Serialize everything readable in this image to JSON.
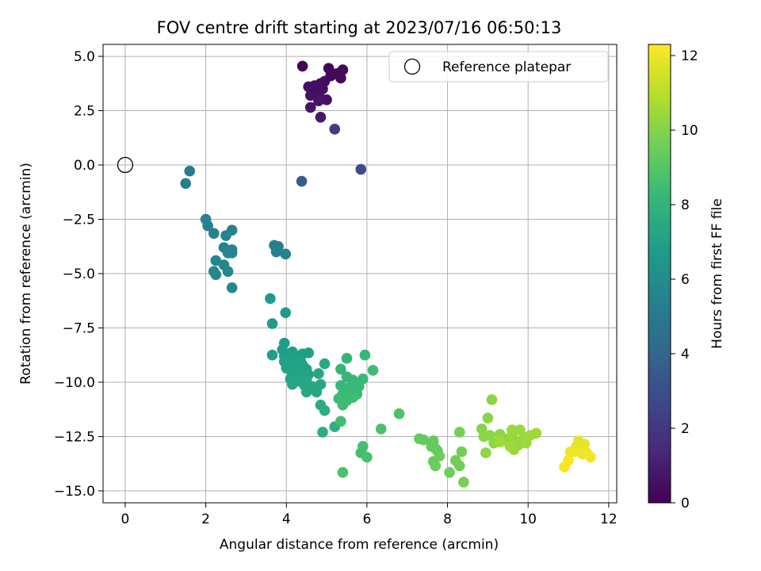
{
  "chart_data": {
    "type": "scatter",
    "title": "FOV centre drift starting at 2023/07/16 06:50:13",
    "xlabel": "Angular distance from reference (arcmin)",
    "ylabel": "Rotation from reference (arcmin)",
    "xlim": [
      -0.55,
      12.2
    ],
    "ylim": [
      -15.55,
      5.55
    ],
    "xticks": [
      0,
      2,
      4,
      6,
      8,
      10,
      12
    ],
    "xtick_labels": [
      "0",
      "2",
      "4",
      "6",
      "8",
      "10",
      "12"
    ],
    "yticks": [
      5.0,
      2.5,
      0.0,
      -2.5,
      -5.0,
      -7.5,
      -10.0,
      -12.5,
      -15.0
    ],
    "ytick_labels": [
      "5.0",
      "2.5",
      "0.0",
      "−2.5",
      "−5.0",
      "−7.5",
      "−10.0",
      "−12.5",
      "−15.0"
    ],
    "grid": true,
    "legend": {
      "position": "top-right",
      "entries": [
        {
          "label": "Reference platepar",
          "marker": "open-circle",
          "x": 0,
          "y": 0
        }
      ]
    },
    "colorbar": {
      "label": "Hours from first FF file",
      "colormap": "viridis",
      "range": [
        0,
        12.3
      ],
      "ticks": [
        0,
        2,
        4,
        6,
        8,
        10,
        12
      ],
      "tick_labels": [
        "0",
        "2",
        "4",
        "6",
        "8",
        "10",
        "12"
      ]
    },
    "colormap_stops": [
      "#440154",
      "#482878",
      "#3e4989",
      "#31688e",
      "#26828e",
      "#1f9e89",
      "#35b779",
      "#6ece58",
      "#b5de2b",
      "#fde725"
    ],
    "reference_point": {
      "x": 0,
      "y": 0
    },
    "series": [
      {
        "points": [
          [
            4.4,
            4.55,
            0.1
          ],
          [
            5.05,
            4.45,
            0.15
          ],
          [
            5.4,
            4.38,
            0.2
          ],
          [
            5.25,
            4.2,
            0.2
          ],
          [
            5.1,
            4.1,
            0.25
          ],
          [
            5.35,
            4.0,
            0.25
          ],
          [
            4.95,
            3.85,
            0.3
          ],
          [
            4.85,
            3.75,
            0.35
          ],
          [
            4.7,
            3.65,
            0.4
          ],
          [
            4.55,
            3.6,
            0.4
          ],
          [
            4.9,
            3.5,
            0.45
          ],
          [
            4.65,
            3.4,
            0.45
          ],
          [
            4.75,
            3.3,
            0.5
          ],
          [
            4.6,
            3.2,
            0.55
          ],
          [
            4.85,
            3.05,
            0.6
          ],
          [
            5.0,
            3.0,
            0.6
          ],
          [
            4.8,
            2.95,
            0.65
          ],
          [
            4.6,
            2.65,
            0.7
          ],
          [
            4.85,
            2.2,
            0.8
          ],
          [
            5.2,
            1.65,
            2.1
          ],
          [
            5.85,
            -0.2,
            2.8
          ],
          [
            4.38,
            -0.75,
            3.6
          ],
          [
            1.6,
            -0.28,
            5.1
          ],
          [
            1.5,
            -0.85,
            5.2
          ],
          [
            2.0,
            -2.5,
            5.4
          ],
          [
            2.05,
            -2.8,
            5.4
          ],
          [
            2.2,
            -3.15,
            5.45
          ],
          [
            2.65,
            -3.0,
            5.5
          ],
          [
            2.5,
            -3.25,
            5.5
          ],
          [
            2.45,
            -3.8,
            5.55
          ],
          [
            2.65,
            -3.9,
            5.55
          ],
          [
            2.55,
            -4.05,
            5.6
          ],
          [
            2.65,
            -4.05,
            5.6
          ],
          [
            2.25,
            -4.4,
            5.65
          ],
          [
            2.45,
            -4.6,
            5.65
          ],
          [
            2.2,
            -4.9,
            5.7
          ],
          [
            2.25,
            -5.05,
            5.7
          ],
          [
            2.55,
            -4.9,
            5.75
          ],
          [
            2.65,
            -5.65,
            5.8
          ],
          [
            3.7,
            -3.7,
            5.3
          ],
          [
            3.8,
            -3.75,
            5.3
          ],
          [
            3.75,
            -4.0,
            5.35
          ],
          [
            3.98,
            -4.1,
            5.4
          ],
          [
            3.6,
            -6.15,
            6.6
          ],
          [
            3.65,
            -7.3,
            6.65
          ],
          [
            3.98,
            -6.8,
            6.7
          ],
          [
            3.95,
            -8.2,
            6.8
          ],
          [
            3.9,
            -8.5,
            6.85
          ],
          [
            4.15,
            -8.6,
            6.85
          ],
          [
            3.65,
            -8.75,
            6.9
          ],
          [
            3.95,
            -8.8,
            6.9
          ],
          [
            4.4,
            -8.7,
            6.9
          ],
          [
            4.55,
            -8.65,
            6.9
          ],
          [
            4.2,
            -8.9,
            6.95
          ],
          [
            4.35,
            -9.0,
            7.0
          ],
          [
            3.95,
            -9.05,
            7.0
          ],
          [
            4.1,
            -9.15,
            7.0
          ],
          [
            4.2,
            -9.25,
            7.0
          ],
          [
            4.4,
            -9.2,
            7.05
          ],
          [
            4.0,
            -9.35,
            7.05
          ],
          [
            4.25,
            -9.45,
            7.1
          ],
          [
            4.5,
            -9.4,
            7.1
          ],
          [
            4.15,
            -9.6,
            7.1
          ],
          [
            4.35,
            -9.7,
            7.15
          ],
          [
            4.55,
            -9.65,
            7.15
          ],
          [
            4.1,
            -9.85,
            7.2
          ],
          [
            4.3,
            -9.95,
            7.2
          ],
          [
            4.5,
            -9.9,
            7.25
          ],
          [
            4.15,
            -10.1,
            7.25
          ],
          [
            4.45,
            -10.15,
            7.3
          ],
          [
            4.8,
            -9.6,
            7.3
          ],
          [
            4.65,
            -10.2,
            7.35
          ],
          [
            4.85,
            -10.1,
            7.35
          ],
          [
            4.5,
            -10.45,
            7.4
          ],
          [
            4.75,
            -10.45,
            7.4
          ],
          [
            4.95,
            -9.15,
            7.45
          ],
          [
            4.85,
            -11.05,
            7.6
          ],
          [
            4.95,
            -11.3,
            7.65
          ],
          [
            5.2,
            -12.05,
            7.7
          ],
          [
            4.9,
            -12.3,
            7.75
          ],
          [
            5.5,
            -8.9,
            8.1
          ],
          [
            5.95,
            -8.75,
            8.15
          ],
          [
            5.35,
            -9.4,
            8.2
          ],
          [
            5.5,
            -9.75,
            8.2
          ],
          [
            5.65,
            -9.9,
            8.25
          ],
          [
            5.35,
            -10.15,
            8.25
          ],
          [
            5.55,
            -10.25,
            8.3
          ],
          [
            5.8,
            -10.2,
            8.3
          ],
          [
            5.9,
            -9.85,
            8.3
          ],
          [
            5.4,
            -10.55,
            8.35
          ],
          [
            5.6,
            -10.45,
            8.35
          ],
          [
            5.75,
            -10.55,
            8.35
          ],
          [
            5.3,
            -10.75,
            8.4
          ],
          [
            5.5,
            -10.85,
            8.4
          ],
          [
            5.4,
            -11.05,
            8.45
          ],
          [
            5.65,
            -10.7,
            8.45
          ],
          [
            5.35,
            -11.8,
            8.5
          ],
          [
            6.15,
            -9.45,
            8.5
          ],
          [
            5.9,
            -12.95,
            8.6
          ],
          [
            5.85,
            -13.25,
            8.6
          ],
          [
            6.0,
            -13.45,
            8.65
          ],
          [
            5.4,
            -14.15,
            8.7
          ],
          [
            6.35,
            -12.15,
            8.75
          ],
          [
            6.8,
            -11.45,
            8.8
          ],
          [
            7.3,
            -12.6,
            9.3
          ],
          [
            7.4,
            -12.65,
            9.3
          ],
          [
            7.65,
            -12.7,
            9.35
          ],
          [
            7.6,
            -12.95,
            9.35
          ],
          [
            7.7,
            -13.05,
            9.4
          ],
          [
            7.75,
            -13.15,
            9.4
          ],
          [
            7.8,
            -13.4,
            9.45
          ],
          [
            7.65,
            -13.65,
            9.45
          ],
          [
            7.7,
            -13.85,
            9.5
          ],
          [
            8.05,
            -14.15,
            9.55
          ],
          [
            8.2,
            -13.6,
            9.6
          ],
          [
            8.3,
            -13.85,
            9.6
          ],
          [
            8.35,
            -13.2,
            9.65
          ],
          [
            8.3,
            -12.3,
            9.65
          ],
          [
            8.4,
            -14.6,
            9.7
          ],
          [
            8.85,
            -12.15,
            10.0
          ],
          [
            9.0,
            -11.65,
            10.05
          ],
          [
            9.1,
            -10.8,
            10.1
          ],
          [
            8.9,
            -12.5,
            10.1
          ],
          [
            9.05,
            -12.45,
            10.15
          ],
          [
            9.15,
            -12.8,
            10.15
          ],
          [
            8.95,
            -13.25,
            10.2
          ],
          [
            9.3,
            -12.4,
            10.2
          ],
          [
            9.4,
            -12.6,
            10.25
          ],
          [
            9.5,
            -12.75,
            10.25
          ],
          [
            9.6,
            -12.45,
            10.3
          ],
          [
            9.7,
            -12.7,
            10.3
          ],
          [
            9.75,
            -12.9,
            10.35
          ],
          [
            9.65,
            -13.1,
            10.35
          ],
          [
            9.8,
            -12.2,
            10.4
          ],
          [
            9.9,
            -12.55,
            10.4
          ],
          [
            9.95,
            -12.8,
            10.45
          ],
          [
            9.6,
            -12.2,
            10.45
          ],
          [
            10.05,
            -12.45,
            10.5
          ],
          [
            10.2,
            -12.35,
            10.5
          ],
          [
            9.55,
            -12.95,
            10.55
          ],
          [
            9.3,
            -12.75,
            10.55
          ],
          [
            11.25,
            -12.7,
            11.8
          ],
          [
            11.2,
            -12.95,
            11.85
          ],
          [
            11.4,
            -12.85,
            11.9
          ],
          [
            11.3,
            -13.1,
            11.9
          ],
          [
            11.15,
            -13.2,
            11.95
          ],
          [
            11.45,
            -13.25,
            12.0
          ],
          [
            11.05,
            -13.2,
            12.0
          ],
          [
            11.35,
            -13.3,
            12.05
          ],
          [
            11.55,
            -13.45,
            12.1
          ],
          [
            11.0,
            -13.6,
            12.15
          ],
          [
            10.9,
            -13.9,
            12.2
          ]
        ]
      }
    ]
  }
}
